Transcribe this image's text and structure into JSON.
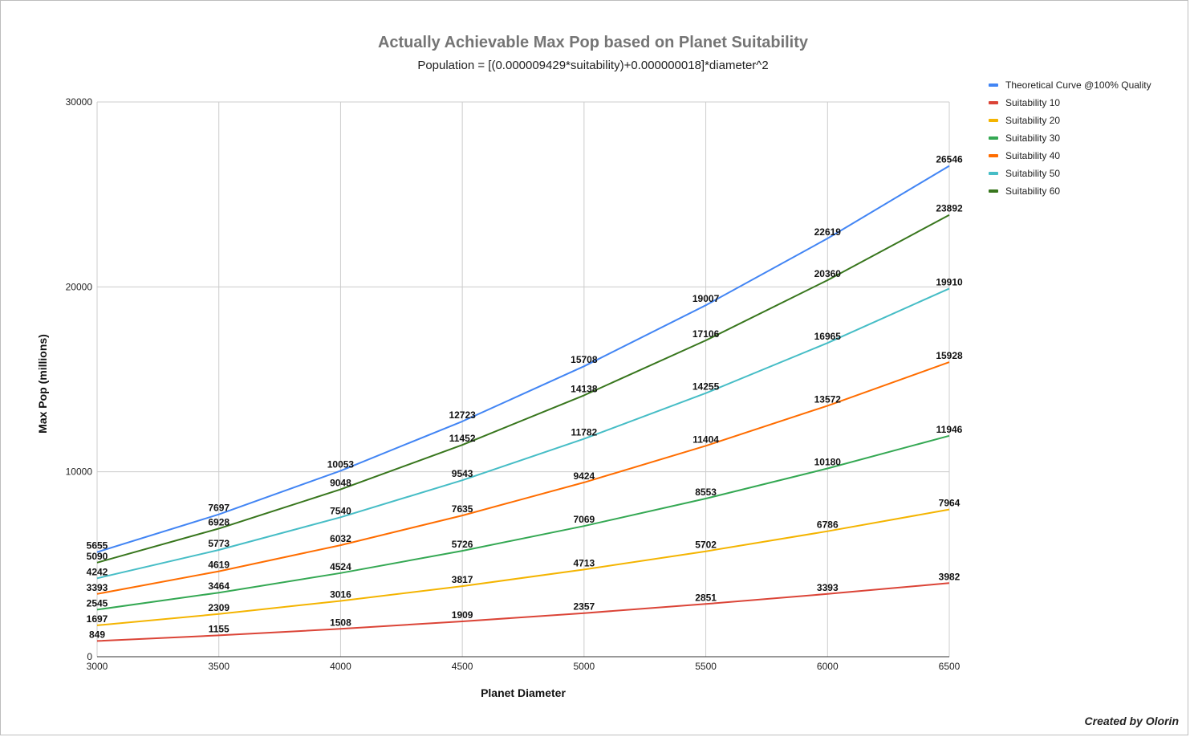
{
  "chart_data": {
    "type": "line",
    "title": "Actually Achievable Max Pop based on Planet Suitability",
    "subtitle": "Population = [(0.000009429*suitability)+0.000000018]*diameter^2",
    "xlabel": "Planet Diameter",
    "ylabel": "Max Pop (millions)",
    "x": [
      3000,
      3500,
      4000,
      4500,
      5000,
      5500,
      6000,
      6500
    ],
    "xlim": [
      3000,
      6500
    ],
    "ylim": [
      0,
      30000
    ],
    "yticks": [
      0,
      10000,
      20000,
      30000
    ],
    "grid": true,
    "legend_position": "right",
    "series": [
      {
        "name": "Theoretical Curve @100% Quality",
        "color": "#4285f4",
        "values": [
          5655,
          7697,
          10053,
          12723,
          15708,
          19007,
          22619,
          26546
        ]
      },
      {
        "name": "Suitability 10",
        "color": "#db4437",
        "values": [
          849,
          1155,
          1508,
          1909,
          2357,
          2851,
          3393,
          3982
        ]
      },
      {
        "name": "Suitability 20",
        "color": "#f4b400",
        "values": [
          1697,
          2309,
          3016,
          3817,
          4713,
          5702,
          6786,
          7964
        ]
      },
      {
        "name": "Suitability 30",
        "color": "#34a853",
        "values": [
          2545,
          3464,
          4524,
          5726,
          7069,
          8553,
          10180,
          11946
        ]
      },
      {
        "name": "Suitability 40",
        "color": "#ff6d00",
        "values": [
          3393,
          4619,
          6032,
          7635,
          9424,
          11404,
          13572,
          15928
        ]
      },
      {
        "name": "Suitability 50",
        "color": "#46bdc6",
        "values": [
          4242,
          5773,
          7540,
          9543,
          11782,
          14255,
          16965,
          19910
        ]
      },
      {
        "name": "Suitability 60",
        "color": "#38761d",
        "values": [
          5090,
          6928,
          9048,
          11452,
          14138,
          17106,
          20360,
          23892
        ]
      }
    ]
  },
  "credit": "Created by Olorin"
}
